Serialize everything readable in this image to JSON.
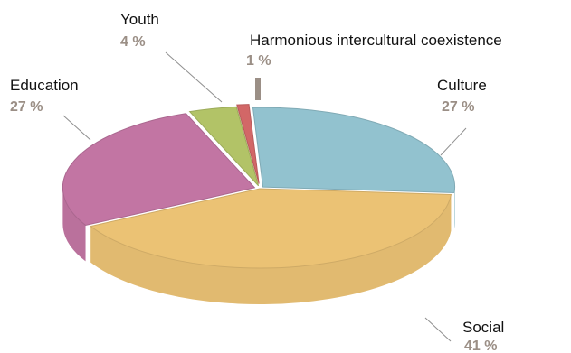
{
  "chart_data": {
    "type": "pie",
    "style": "3d-exploded",
    "title": "",
    "slices": [
      {
        "label": "Culture",
        "value": 27,
        "value_label": "27 %",
        "color": "#96c8d5"
      },
      {
        "label": "Social",
        "value": 41,
        "value_label": "41 %",
        "color": "#f2c878"
      },
      {
        "label": "Education",
        "value": 27,
        "value_label": "27 %",
        "color": "#c879a8"
      },
      {
        "label": "Youth",
        "value": 4,
        "value_label": "4 %",
        "color": "#b8c96a"
      },
      {
        "label": "Harmonious intercultural coexistence",
        "value": 1,
        "value_label": "1 %",
        "color": "#d86a6a"
      }
    ],
    "label_color": "#111111",
    "value_label_color": "#9b8f86",
    "leader_line_color": "#8f8f8f"
  }
}
